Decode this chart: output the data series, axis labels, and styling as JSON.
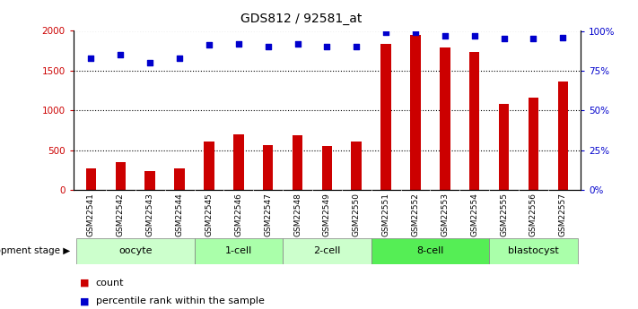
{
  "title": "GDS812 / 92581_at",
  "samples": [
    "GSM22541",
    "GSM22542",
    "GSM22543",
    "GSM22544",
    "GSM22545",
    "GSM22546",
    "GSM22547",
    "GSM22548",
    "GSM22549",
    "GSM22550",
    "GSM22551",
    "GSM22552",
    "GSM22553",
    "GSM22554",
    "GSM22555",
    "GSM22556",
    "GSM22557"
  ],
  "counts": [
    270,
    350,
    240,
    275,
    610,
    700,
    560,
    690,
    555,
    610,
    1840,
    1950,
    1790,
    1730,
    1080,
    1160,
    1360
  ],
  "percentiles": [
    83,
    85,
    80,
    83,
    91,
    92,
    90,
    92,
    90,
    90,
    99,
    99,
    97,
    97,
    95,
    95,
    96
  ],
  "bar_color": "#cc0000",
  "dot_color": "#0000cc",
  "ylim_left": [
    0,
    2000
  ],
  "ylim_right": [
    0,
    100
  ],
  "yticks_left": [
    0,
    500,
    1000,
    1500,
    2000
  ],
  "yticks_right": [
    0,
    25,
    50,
    75,
    100
  ],
  "grid_values": [
    500,
    1000,
    1500,
    2000
  ],
  "stages": [
    {
      "label": "oocyte",
      "start": 0,
      "end": 4,
      "color": "#ccffcc"
    },
    {
      "label": "1-cell",
      "start": 4,
      "end": 7,
      "color": "#aaffaa"
    },
    {
      "label": "2-cell",
      "start": 7,
      "end": 10,
      "color": "#ccffcc"
    },
    {
      "label": "8-cell",
      "start": 10,
      "end": 14,
      "color": "#55ee55"
    },
    {
      "label": "blastocyst",
      "start": 14,
      "end": 17,
      "color": "#aaffaa"
    }
  ],
  "legend_count_label": "count",
  "legend_pct_label": "percentile rank within the sample",
  "dev_stage_label": "development stage",
  "tick_color_left": "#cc0000",
  "tick_color_right": "#0000cc",
  "xlabel_bg": "#c8c8c8",
  "plot_bg": "#ffffff"
}
